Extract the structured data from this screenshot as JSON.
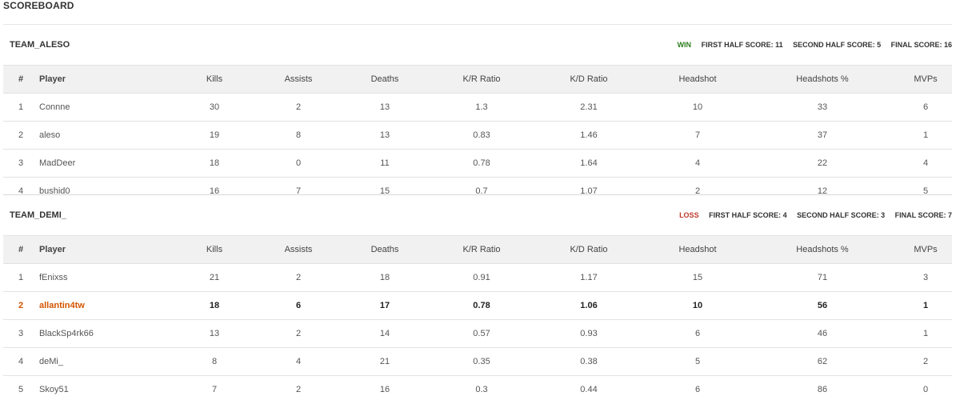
{
  "page": {
    "title": "SCOREBOARD"
  },
  "columns": [
    "#",
    "Player",
    "Kills",
    "Assists",
    "Deaths",
    "K/R Ratio",
    "K/D Ratio",
    "Headshot",
    "Headshots %",
    "MVPs"
  ],
  "teams": [
    {
      "name": "TEAM_ALESO",
      "result": "WIN",
      "first_half": "FIRST HALF SCORE: 11",
      "second_half": "SECOND HALF SCORE: 5",
      "final": "FINAL SCORE: 16",
      "rows": [
        [
          "1",
          "Connne",
          "30",
          "2",
          "13",
          "1.3",
          "2.31",
          "10",
          "33",
          "6"
        ],
        [
          "2",
          "aleso",
          "19",
          "8",
          "13",
          "0.83",
          "1.46",
          "7",
          "37",
          "1"
        ],
        [
          "3",
          "MadDeer",
          "18",
          "0",
          "11",
          "0.78",
          "1.64",
          "4",
          "22",
          "4"
        ],
        [
          "4",
          "bushid0",
          "16",
          "7",
          "15",
          "0.7",
          "1.07",
          "2",
          "12",
          "5"
        ]
      ]
    },
    {
      "name": "TEAM_DEMI_",
      "result": "LOSS",
      "first_half": "FIRST HALF SCORE: 4",
      "second_half": "SECOND HALF SCORE: 3",
      "final": "FINAL SCORE: 7",
      "rows": [
        [
          "1",
          "fEnixss",
          "21",
          "2",
          "18",
          "0.91",
          "1.17",
          "15",
          "71",
          "3"
        ],
        [
          "2",
          "allantin4tw",
          "18",
          "6",
          "17",
          "0.78",
          "1.06",
          "10",
          "56",
          "1"
        ],
        [
          "3",
          "BlackSp4rk66",
          "13",
          "2",
          "14",
          "0.57",
          "0.93",
          "6",
          "46",
          "1"
        ],
        [
          "4",
          "deMi_",
          "8",
          "4",
          "21",
          "0.35",
          "0.38",
          "5",
          "62",
          "2"
        ],
        [
          "5",
          "Skoy51",
          "7",
          "2",
          "16",
          "0.3",
          "0.44",
          "6",
          "86",
          "0"
        ]
      ]
    }
  ]
}
